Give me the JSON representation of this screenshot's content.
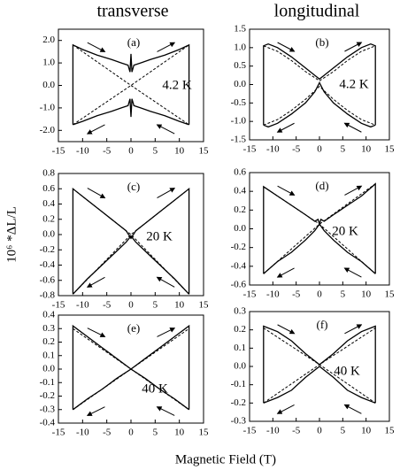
{
  "figure": {
    "column_titles": [
      "transverse",
      "longitudinal"
    ],
    "ylabel": "10⁶ *ΔL/L",
    "xlabel": "Magnetic Field (T)"
  },
  "chart_data": [
    {
      "type": "line",
      "panel_label": "(a)",
      "temperature": "4.2 K",
      "xlim": [
        -15,
        15
      ],
      "xticks": [
        -15,
        -10,
        -5,
        0,
        5,
        10,
        15
      ],
      "ylim": [
        -2.5,
        2.5
      ],
      "yticks": [
        {
          "value": 2,
          "label": "2.0"
        },
        {
          "value": 1,
          "label": "1.0"
        },
        {
          "value": 0,
          "label": "0.0"
        },
        {
          "value": -1,
          "label": "-1.0"
        },
        {
          "value": -2,
          "label": "-2.0"
        }
      ],
      "series": [
        {
          "color": "#000000",
          "dashed": false,
          "x": [
            -12,
            -12,
            -10,
            -7,
            -4,
            -2,
            -0.6,
            -0.2,
            0,
            0.2,
            0.6,
            2,
            4,
            7,
            10,
            12,
            12
          ],
          "values": [
            -1.75,
            1.8,
            1.6,
            1.35,
            1.15,
            1.0,
            0.9,
            0.6,
            1.4,
            0.6,
            0.9,
            1.0,
            1.15,
            1.35,
            1.6,
            1.8,
            -1.75
          ]
        },
        {
          "color": "#000000",
          "dashed": false,
          "x": [
            -12,
            -10,
            -7,
            -4,
            -2,
            -0.6,
            -0.2,
            0,
            0.2,
            0.6,
            2,
            4,
            7,
            10,
            12
          ],
          "values": [
            -1.75,
            -1.6,
            -1.35,
            -1.15,
            -1.0,
            -0.9,
            -0.6,
            -1.4,
            -0.6,
            -0.9,
            -1.0,
            -1.15,
            -1.35,
            -1.6,
            -1.75
          ]
        },
        {
          "color": "#000000",
          "dashed": true,
          "x": [
            -12,
            0,
            12
          ],
          "values": [
            1.8,
            0,
            -1.75
          ]
        },
        {
          "color": "#000000",
          "dashed": true,
          "x": [
            -12,
            0,
            12
          ],
          "values": [
            -1.75,
            0,
            1.8
          ]
        }
      ]
    },
    {
      "type": "line",
      "panel_label": "(b)",
      "temperature": "4.2 K",
      "xlim": [
        -15,
        15
      ],
      "xticks": [
        -15,
        -10,
        -5,
        0,
        5,
        10,
        15
      ],
      "ylim": [
        -1.5,
        1.5
      ],
      "yticks": [
        1.5,
        {
          "value": 1,
          "label": "1.0"
        },
        0.5,
        {
          "value": 0,
          "label": "0.0"
        },
        -0.5,
        {
          "value": -1,
          "label": "-1.0"
        },
        -1.5
      ],
      "series": [
        {
          "color": "#000000",
          "dashed": false,
          "x": [
            -12,
            -12,
            -11,
            -9,
            -6,
            -3,
            -1,
            0,
            1,
            3,
            6,
            9,
            11,
            12,
            12
          ],
          "values": [
            -1.1,
            1.05,
            1.1,
            1.0,
            0.75,
            0.45,
            0.25,
            0.15,
            0.25,
            0.45,
            0.75,
            1.0,
            1.1,
            1.05,
            -1.1
          ]
        },
        {
          "color": "#000000",
          "dashed": false,
          "x": [
            -12,
            -11,
            -9,
            -6,
            -3,
            -1,
            0,
            1,
            3,
            6,
            9,
            11,
            12
          ],
          "values": [
            -1.1,
            -1.15,
            -1.05,
            -0.8,
            -0.5,
            -0.2,
            0.05,
            -0.2,
            -0.5,
            -0.8,
            -1.05,
            -1.15,
            -1.1
          ]
        },
        {
          "color": "#000000",
          "dashed": true,
          "x": [
            -12,
            -9,
            -6,
            -3,
            0,
            3,
            6,
            9,
            12
          ],
          "values": [
            1.05,
            0.9,
            0.65,
            0.35,
            0.1,
            0.35,
            0.65,
            0.9,
            1.05
          ]
        },
        {
          "color": "#000000",
          "dashed": true,
          "x": [
            -12,
            -9,
            -6,
            -3,
            0,
            3,
            6,
            9,
            12
          ],
          "values": [
            -1.1,
            -0.95,
            -0.7,
            -0.4,
            -0.05,
            -0.4,
            -0.7,
            -0.95,
            -1.1
          ]
        }
      ]
    },
    {
      "type": "line",
      "panel_label": "(c)",
      "temperature": "20 K",
      "xlim": [
        -15,
        15
      ],
      "xticks": [
        -15,
        -10,
        -5,
        0,
        5,
        10,
        15
      ],
      "ylim": [
        -0.8,
        0.8
      ],
      "yticks": [
        0.8,
        0.6,
        0.4,
        0.2,
        {
          "value": 0,
          "label": "0.0"
        },
        -0.2,
        -0.4,
        -0.6,
        -0.8
      ],
      "series": [
        {
          "color": "#000000",
          "dashed": false,
          "x": [
            -12,
            -12,
            -9,
            -6,
            -3,
            -1,
            0,
            1,
            3,
            6,
            9,
            12,
            12
          ],
          "values": [
            -0.78,
            0.6,
            0.45,
            0.3,
            0.15,
            0.05,
            -0.05,
            0.05,
            0.15,
            0.3,
            0.45,
            0.6,
            -0.78
          ]
        },
        {
          "color": "#000000",
          "dashed": false,
          "x": [
            -12,
            -9,
            -6,
            -3,
            -1,
            0,
            1,
            3,
            6,
            9,
            12
          ],
          "values": [
            -0.78,
            -0.58,
            -0.4,
            -0.22,
            -0.1,
            -0.02,
            -0.1,
            -0.22,
            -0.4,
            -0.58,
            -0.78
          ]
        },
        {
          "color": "#000000",
          "dashed": true,
          "x": [
            -12,
            0,
            12
          ],
          "values": [
            0.6,
            0,
            -0.78
          ]
        },
        {
          "color": "#000000",
          "dashed": true,
          "x": [
            -12,
            0,
            12
          ],
          "values": [
            -0.78,
            0,
            0.6
          ]
        }
      ]
    },
    {
      "type": "line",
      "panel_label": "(d)",
      "temperature": "20 K",
      "xlim": [
        -15,
        15
      ],
      "xticks": [
        -15,
        -10,
        -5,
        0,
        5,
        10,
        15
      ],
      "ylim": [
        -0.6,
        0.6
      ],
      "yticks": [
        0.6,
        0.4,
        0.2,
        {
          "value": 0,
          "label": "0.0"
        },
        -0.2,
        -0.4,
        -0.6
      ],
      "series": [
        {
          "color": "#000000",
          "dashed": false,
          "x": [
            -12,
            -12,
            -9,
            -6,
            -3,
            -1,
            -0.3,
            0,
            0.3,
            1,
            3,
            6,
            9,
            12,
            12
          ],
          "values": [
            -0.48,
            0.45,
            0.35,
            0.25,
            0.15,
            0.08,
            0.1,
            0.05,
            0.1,
            0.08,
            0.15,
            0.25,
            0.35,
            0.48,
            -0.48
          ]
        },
        {
          "color": "#000000",
          "dashed": false,
          "x": [
            -12,
            -9,
            -6,
            -3,
            -1,
            0,
            1,
            3,
            6,
            9,
            12
          ],
          "values": [
            -0.48,
            -0.35,
            -0.25,
            -0.12,
            -0.02,
            0.05,
            -0.02,
            -0.12,
            -0.25,
            -0.35,
            -0.48
          ]
        },
        {
          "color": "#000000",
          "dashed": true,
          "x": [
            -12,
            0,
            12
          ],
          "values": [
            0.45,
            0.05,
            -0.48
          ]
        },
        {
          "color": "#000000",
          "dashed": true,
          "x": [
            -12,
            0,
            12
          ],
          "values": [
            -0.48,
            0.05,
            0.48
          ]
        }
      ]
    },
    {
      "type": "line",
      "panel_label": "(e)",
      "temperature": "40 K",
      "xlim": [
        -15,
        15
      ],
      "xticks": [
        -15,
        -10,
        -5,
        0,
        5,
        10,
        15
      ],
      "ylim": [
        -0.4,
        0.4
      ],
      "yticks": [
        0.4,
        0.3,
        0.2,
        0.1,
        {
          "value": 0,
          "label": "0.0"
        },
        -0.1,
        -0.2,
        -0.3,
        -0.4
      ],
      "series": [
        {
          "color": "#000000",
          "dashed": false,
          "x": [
            -12,
            -12,
            -9,
            -6,
            -3,
            0,
            3,
            6,
            9,
            12,
            12
          ],
          "values": [
            -0.3,
            0.32,
            0.24,
            0.16,
            0.08,
            0,
            0.08,
            0.16,
            0.24,
            0.32,
            -0.3
          ]
        },
        {
          "color": "#000000",
          "dashed": false,
          "x": [
            -12,
            -9,
            -6,
            -3,
            0,
            3,
            6,
            9,
            12
          ],
          "values": [
            -0.3,
            -0.22,
            -0.15,
            -0.07,
            0,
            -0.07,
            -0.15,
            -0.22,
            -0.3
          ]
        },
        {
          "color": "#000000",
          "dashed": true,
          "x": [
            -12,
            0,
            12
          ],
          "values": [
            0.3,
            0,
            -0.3
          ]
        },
        {
          "color": "#000000",
          "dashed": true,
          "x": [
            -12,
            0,
            12
          ],
          "values": [
            -0.3,
            0,
            0.3
          ]
        }
      ]
    },
    {
      "type": "line",
      "panel_label": "(f)",
      "temperature": "40 K",
      "xlim": [
        -15,
        15
      ],
      "xticks": [
        -15,
        -10,
        -5,
        0,
        5,
        10,
        15
      ],
      "ylim": [
        -0.3,
        0.3
      ],
      "yticks": [
        0.3,
        0.2,
        0.1,
        {
          "value": 0,
          "label": "0.0"
        },
        -0.1,
        -0.2,
        -0.3
      ],
      "series": [
        {
          "color": "#000000",
          "dashed": false,
          "x": [
            -12,
            -12,
            -9,
            -6,
            -3,
            -1,
            0,
            1,
            3,
            6,
            9,
            12,
            12
          ],
          "values": [
            -0.2,
            0.22,
            0.19,
            0.14,
            0.07,
            0.03,
            0.01,
            0.03,
            0.07,
            0.14,
            0.19,
            0.22,
            -0.2
          ]
        },
        {
          "color": "#000000",
          "dashed": false,
          "x": [
            -12,
            -9,
            -6,
            -3,
            -1,
            0,
            1,
            3,
            6,
            9,
            12
          ],
          "values": [
            -0.2,
            -0.17,
            -0.13,
            -0.06,
            -0.02,
            0,
            -0.02,
            -0.06,
            -0.13,
            -0.17,
            -0.2
          ]
        },
        {
          "color": "#000000",
          "dashed": true,
          "x": [
            -12,
            0,
            12
          ],
          "values": [
            0.21,
            0.01,
            -0.2
          ]
        },
        {
          "color": "#000000",
          "dashed": true,
          "x": [
            -12,
            0,
            12
          ],
          "values": [
            -0.2,
            0.01,
            0.21
          ]
        }
      ]
    }
  ]
}
